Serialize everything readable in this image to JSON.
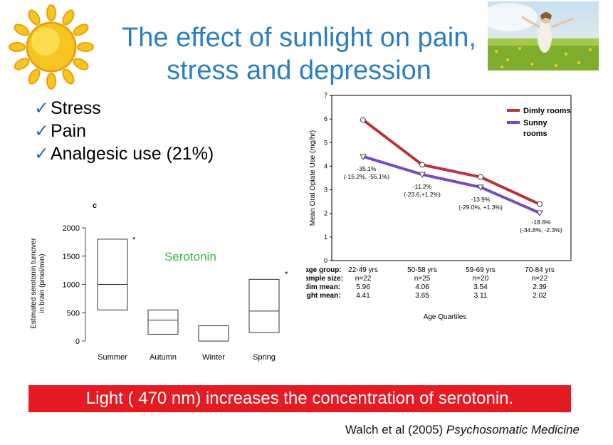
{
  "slide": {
    "title_line1": "The effect of sunlight on pain,",
    "title_line2": "stress and depression",
    "bullets": [
      "Stress",
      "Pain",
      "Analgesic use (21%)"
    ],
    "check_mark": "✓",
    "banner": "Light ( 470 nm) increases the concentration of serotonin.",
    "citation_authors": "Walch et al (2005) ",
    "citation_journal": "Psychosomatic Medicine",
    "colors": {
      "title": "#2b7fc0",
      "banner": "#e51b24",
      "dim": "#b5343d",
      "sunny": "#7a4bbf",
      "serotonin": "#3cb44b"
    }
  },
  "chart_data": [
    {
      "type": "line",
      "ylabel": "Mean Oral Opiate Use (mg/hr)",
      "xlabel": "Age Quartiles",
      "ylim": [
        0,
        7
      ],
      "yticks": [
        0,
        1,
        2,
        3,
        4,
        5,
        6,
        7
      ],
      "categories": [
        "22-49 yrs",
        "50-58 yrs",
        "59-69 yrs",
        "70-84 yrs"
      ],
      "row_labels": [
        "age group:",
        "ample size:",
        "dim mean:",
        "ight mean:"
      ],
      "sample_size": [
        "n=22",
        "n=25",
        "n=20",
        "n=22"
      ],
      "dim_mean": [
        "5.96",
        "4.06",
        "3.54",
        "2.39"
      ],
      "bright_mean": [
        "4.41",
        "3.65",
        "3.11",
        "2.02"
      ],
      "series": [
        {
          "name": "Dimly rooms",
          "x": [
            0,
            1,
            2,
            3
          ],
          "values": [
            5.96,
            4.06,
            3.54,
            2.39
          ]
        },
        {
          "name": "Sunny rooms",
          "x": [
            0,
            1,
            2,
            3
          ],
          "values": [
            4.41,
            3.65,
            3.11,
            2.02
          ]
        }
      ],
      "legend_dim": "Dimly rooms",
      "legend_sunny_1": "Sunny",
      "legend_sunny_2": "rooms",
      "annotations": [
        {
          "pct": "-35.1%",
          "ci": "(-15.2%, -55.1%)"
        },
        {
          "pct": "-11.2%",
          "ci": "(-23.6,+1.2%)"
        },
        {
          "pct": "-13.9%",
          "ci": "(-29.0%, +1.3%)"
        },
        {
          "pct": "-18.6%",
          "ci": "(-34.8%, -2.3%)"
        }
      ]
    },
    {
      "type": "box",
      "panel_label": "c",
      "ylabel_line1": "Estimated serotonin turnover",
      "ylabel_line2": "in brain (pmol/min)",
      "ylim": [
        0,
        2000
      ],
      "yticks": [
        0,
        500,
        1000,
        1500,
        2000
      ],
      "categories": [
        "Summer",
        "Autumn",
        "Winter",
        "Spring"
      ],
      "boxes": [
        {
          "low": 550,
          "median": 1000,
          "high": 1800
        },
        {
          "low": 120,
          "median": 370,
          "high": 550
        },
        {
          "low": 0,
          "median": 0,
          "high": 270
        },
        {
          "low": 150,
          "median": 530,
          "high": 1090
        }
      ],
      "significance": "*",
      "series_label": "Serotonin"
    }
  ]
}
